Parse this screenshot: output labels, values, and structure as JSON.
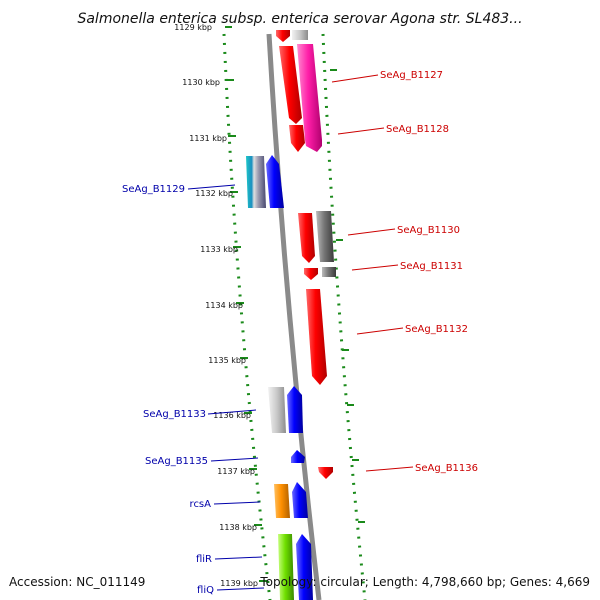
{
  "title": "Salmonella enterica subsp. enterica serovar Agona str. SL483...",
  "footer": {
    "accession": "Accession: NC_011149",
    "topology": "Topology: circular; Length: 4,798,660 bp; Genes: 4,669"
  },
  "ticks": [
    "1129 kbp",
    "1130 kbp",
    "1131 kbp",
    "1132 kbp",
    "1133 kbp",
    "1134 kbp",
    "1135 kbp",
    "1136 kbp",
    "1137 kbp",
    "1138 kbp",
    "1139 kbp"
  ],
  "genes_right": [
    "SeAg_B1127",
    "SeAg_B1128",
    "SeAg_B1130",
    "SeAg_B1131",
    "SeAg_B1132",
    "SeAg_B1136"
  ],
  "genes_left": [
    "SeAg_B1129",
    "SeAg_B1133",
    "SeAg_B1135",
    "rcsA",
    "fliR",
    "fliQ"
  ],
  "colors": {
    "forward_label": "#0000aa",
    "reverse_label": "#cc0000",
    "dotted_track": "#1a8a1a",
    "backbone": "#8a8a8a"
  }
}
